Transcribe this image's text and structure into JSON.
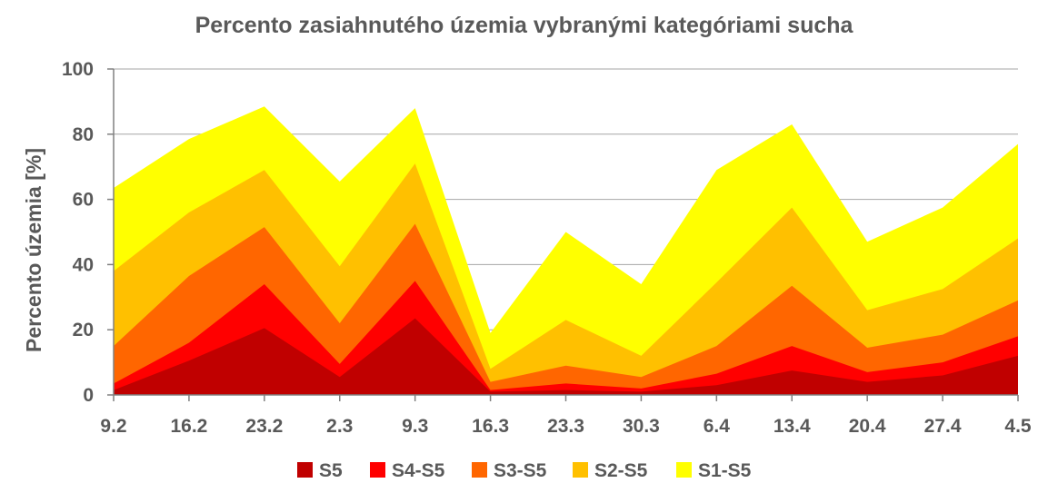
{
  "chart_data": {
    "type": "area",
    "title": "Percento zasiahnutého územia vybranými kategóriami sucha",
    "xlabel": "",
    "ylabel": "Percento územia  [%]",
    "ylim": [
      0,
      100
    ],
    "yticks": [
      0,
      20,
      40,
      60,
      80,
      100
    ],
    "grid": true,
    "legend_position": "bottom",
    "categories": [
      "9.2",
      "16.2",
      "23.2",
      "2.3",
      "9.3",
      "16.3",
      "23.3",
      "30.3",
      "6.4",
      "13.4",
      "20.4",
      "27.4",
      "4.5"
    ],
    "series": [
      {
        "name": "S1-S5",
        "color": "#FFFF00",
        "values": [
          63.5,
          78.5,
          88.5,
          65.5,
          88,
          19,
          50,
          34,
          69,
          83,
          47,
          57.5,
          77
        ]
      },
      {
        "name": "S2-S5",
        "color": "#FFC000",
        "values": [
          38,
          56,
          69,
          39.5,
          71,
          8,
          23,
          12,
          34.5,
          57.5,
          26,
          32.5,
          48
        ]
      },
      {
        "name": "S3-S5",
        "color": "#FF6600",
        "values": [
          15,
          36.5,
          51.5,
          22,
          52.5,
          4,
          9,
          5.5,
          15,
          33.5,
          14.5,
          18.5,
          29
        ]
      },
      {
        "name": "S4-S5",
        "color": "#FF0000",
        "values": [
          3.5,
          16,
          34,
          9.5,
          35,
          1.5,
          3.5,
          2,
          6.5,
          15,
          7,
          10,
          18
        ]
      },
      {
        "name": "S5",
        "color": "#C00000",
        "values": [
          1.5,
          10.5,
          20.5,
          5.5,
          23.5,
          1,
          1.5,
          1,
          3,
          7.5,
          4,
          6,
          12
        ]
      }
    ],
    "legend_order": [
      "S5",
      "S4-S5",
      "S3-S5",
      "S2-S5",
      "S1-S5"
    ]
  }
}
